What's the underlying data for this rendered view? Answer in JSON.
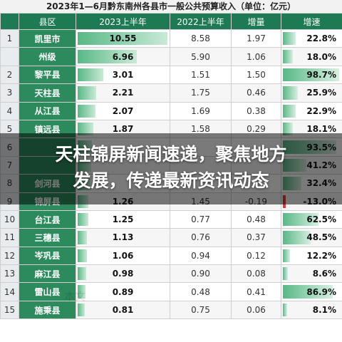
{
  "title": "2023年1—6月黔东南州各县市一般公共预算收入（单位：亿元）",
  "columns": [
    "县区",
    "2023上半年",
    "2022上半年",
    "增量",
    "增速"
  ],
  "rows": [
    {
      "idx": "1",
      "county": "凯里市",
      "v23": "10.55",
      "v22": "8.58",
      "inc": "1.97",
      "gr": "22.8%",
      "bar": 1.0,
      "grv": 0.228
    },
    {
      "idx": "",
      "county": "州级",
      "v23": "6.96",
      "v22": "5.90",
      "inc": "1.06",
      "gr": "18.0%",
      "bar": 0.66,
      "grv": 0.18
    },
    {
      "idx": "2",
      "county": "黎平县",
      "v23": "3.01",
      "v22": "1.51",
      "inc": "1.50",
      "gr": "98.7%",
      "bar": 0.285,
      "grv": 0.987
    },
    {
      "idx": "3",
      "county": "天柱县",
      "v23": "2.21",
      "v22": "1.75",
      "inc": "0.46",
      "gr": "25.9%",
      "bar": 0.21,
      "grv": 0.259
    },
    {
      "idx": "4",
      "county": "从江县",
      "v23": "2.07",
      "v22": "1.69",
      "inc": "0.38",
      "gr": "22.9%",
      "bar": 0.196,
      "grv": 0.229
    },
    {
      "idx": "5",
      "county": "镇远县",
      "v23": "1.87",
      "v22": "1.58",
      "inc": "0.29",
      "gr": "18.1%",
      "bar": 0.177,
      "grv": 0.181
    },
    {
      "idx": "6",
      "county": "",
      "v23": "",
      "v22": "",
      "inc": "",
      "gr": "93.5%",
      "bar": 0.16,
      "grv": 0.935
    },
    {
      "idx": "7",
      "county": "",
      "v23": "",
      "v22": "",
      "inc": "",
      "gr": "41.2%",
      "bar": 0.15,
      "grv": 0.412
    },
    {
      "idx": "8",
      "county": "剑河县",
      "v23": "",
      "v22": "",
      "inc": "",
      "gr": "32.4%",
      "bar": 0.14,
      "grv": 0.324
    },
    {
      "idx": "9",
      "county": "锦屏县",
      "v23": "1.26",
      "v22": "1.45",
      "inc": "-0.19",
      "gr": "-13.0%",
      "bar": 0.119,
      "grv": -0.13
    },
    {
      "idx": "10",
      "county": "台江县",
      "v23": "1.25",
      "v22": "0.77",
      "inc": "0.48",
      "gr": "62.5%",
      "bar": 0.118,
      "grv": 0.625
    },
    {
      "idx": "11",
      "county": "三穗县",
      "v23": "1.13",
      "v22": "0.76",
      "inc": "0.37",
      "gr": "48.5%",
      "bar": 0.107,
      "grv": 0.485
    },
    {
      "idx": "12",
      "county": "岑巩县",
      "v23": "1.06",
      "v22": "0.94",
      "inc": "0.12",
      "gr": "12.2%",
      "bar": 0.1,
      "grv": 0.122
    },
    {
      "idx": "13",
      "county": "麻江县",
      "v23": "0.98",
      "v22": "0.90",
      "inc": "0.08",
      "gr": "8.6%",
      "bar": 0.093,
      "grv": 0.086
    },
    {
      "idx": "14",
      "county": "雷山县",
      "v23": "0.89",
      "v22": "0.48",
      "inc": "0.41",
      "gr": "86.9%",
      "bar": 0.084,
      "grv": 0.869
    },
    {
      "idx": "15",
      "county": "施秉县",
      "v23": "0.81",
      "v22": "0.75",
      "inc": "0.06",
      "gr": "8.1%",
      "bar": 0.077,
      "grv": 0.081
    }
  ],
  "headline_line1": "天柱锦屏新闻速递，聚焦地方",
  "headline_line2": "发展，传递最新资讯动态",
  "watermark": "本文"
}
